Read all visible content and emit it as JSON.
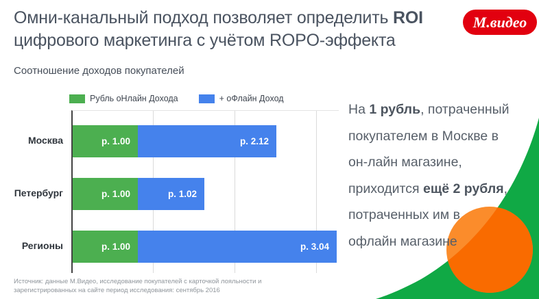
{
  "title": {
    "line1_regular": "Омни-канальный подход позволяет определить ",
    "line1_bold": "ROI",
    "line2": "цифрового маркетинга с учётом ROPO-эффекта"
  },
  "subtitle": "Соотношение доходов покупателей",
  "logo": {
    "text": "М.видео",
    "bg": "#E2000F"
  },
  "legend": [
    {
      "label": "Рубль оНлайн Дохода",
      "color": "#4CAF50"
    },
    {
      "label": "+ оФлайн Доход",
      "color": "#4582EC"
    }
  ],
  "chart_data": {
    "type": "bar",
    "orientation": "horizontal",
    "stacked": true,
    "title": "Соотношение доходов покупателей",
    "categories": [
      "Москва",
      "Петербург",
      "Регионы"
    ],
    "series": [
      {
        "name": "Рубль оНлайн Дохода",
        "color": "#4CAF50",
        "values": [
          1.0,
          1.0,
          1.0
        ],
        "labels": [
          "р. 1.00",
          "р. 1.00",
          "р. 1.00"
        ]
      },
      {
        "name": "+ оФлайн Доход",
        "color": "#4582EC",
        "values": [
          2.12,
          1.02,
          3.04
        ],
        "labels": [
          "р. 2.12",
          "р. 1.02",
          "р. 3.04"
        ]
      }
    ],
    "totals": [
      3.12,
      2.02,
      4.04
    ],
    "xlim": [
      0,
      4.07
    ],
    "gridlines_at": [
      1.25,
      2.5,
      3.75
    ],
    "grid": true,
    "legend_position": "top"
  },
  "annotation": {
    "lines": [
      [
        {
          "t": "На "
        },
        {
          "t": "1 рубль",
          "b": true
        },
        {
          "t": ", потраченный"
        }
      ],
      [
        {
          "t": "покупателем в Москве в"
        }
      ],
      [
        {
          "t": "он-лайн магазине,"
        }
      ],
      [
        {
          "t": "приходится "
        },
        {
          "t": "ещё 2 рубля",
          "b": true
        },
        {
          "t": ","
        }
      ],
      [
        {
          "t": "потраченных им в"
        }
      ],
      [
        {
          "t": "офлайн магазине"
        }
      ]
    ]
  },
  "source": {
    "line1": "Источник: данные М.Видео, исследование покупателей с карточкой лояльности и",
    "line2": "зарегистрированных на сайте  период исследования: сентябрь 2016"
  },
  "colors": {
    "deco_green": "#10A945",
    "deco_orange_light": "#FB8C2B",
    "deco_orange_dark": "#F96B00",
    "logo_red": "#E2000F",
    "bar_green": "#4CAF50",
    "bar_blue": "#4582EC"
  }
}
